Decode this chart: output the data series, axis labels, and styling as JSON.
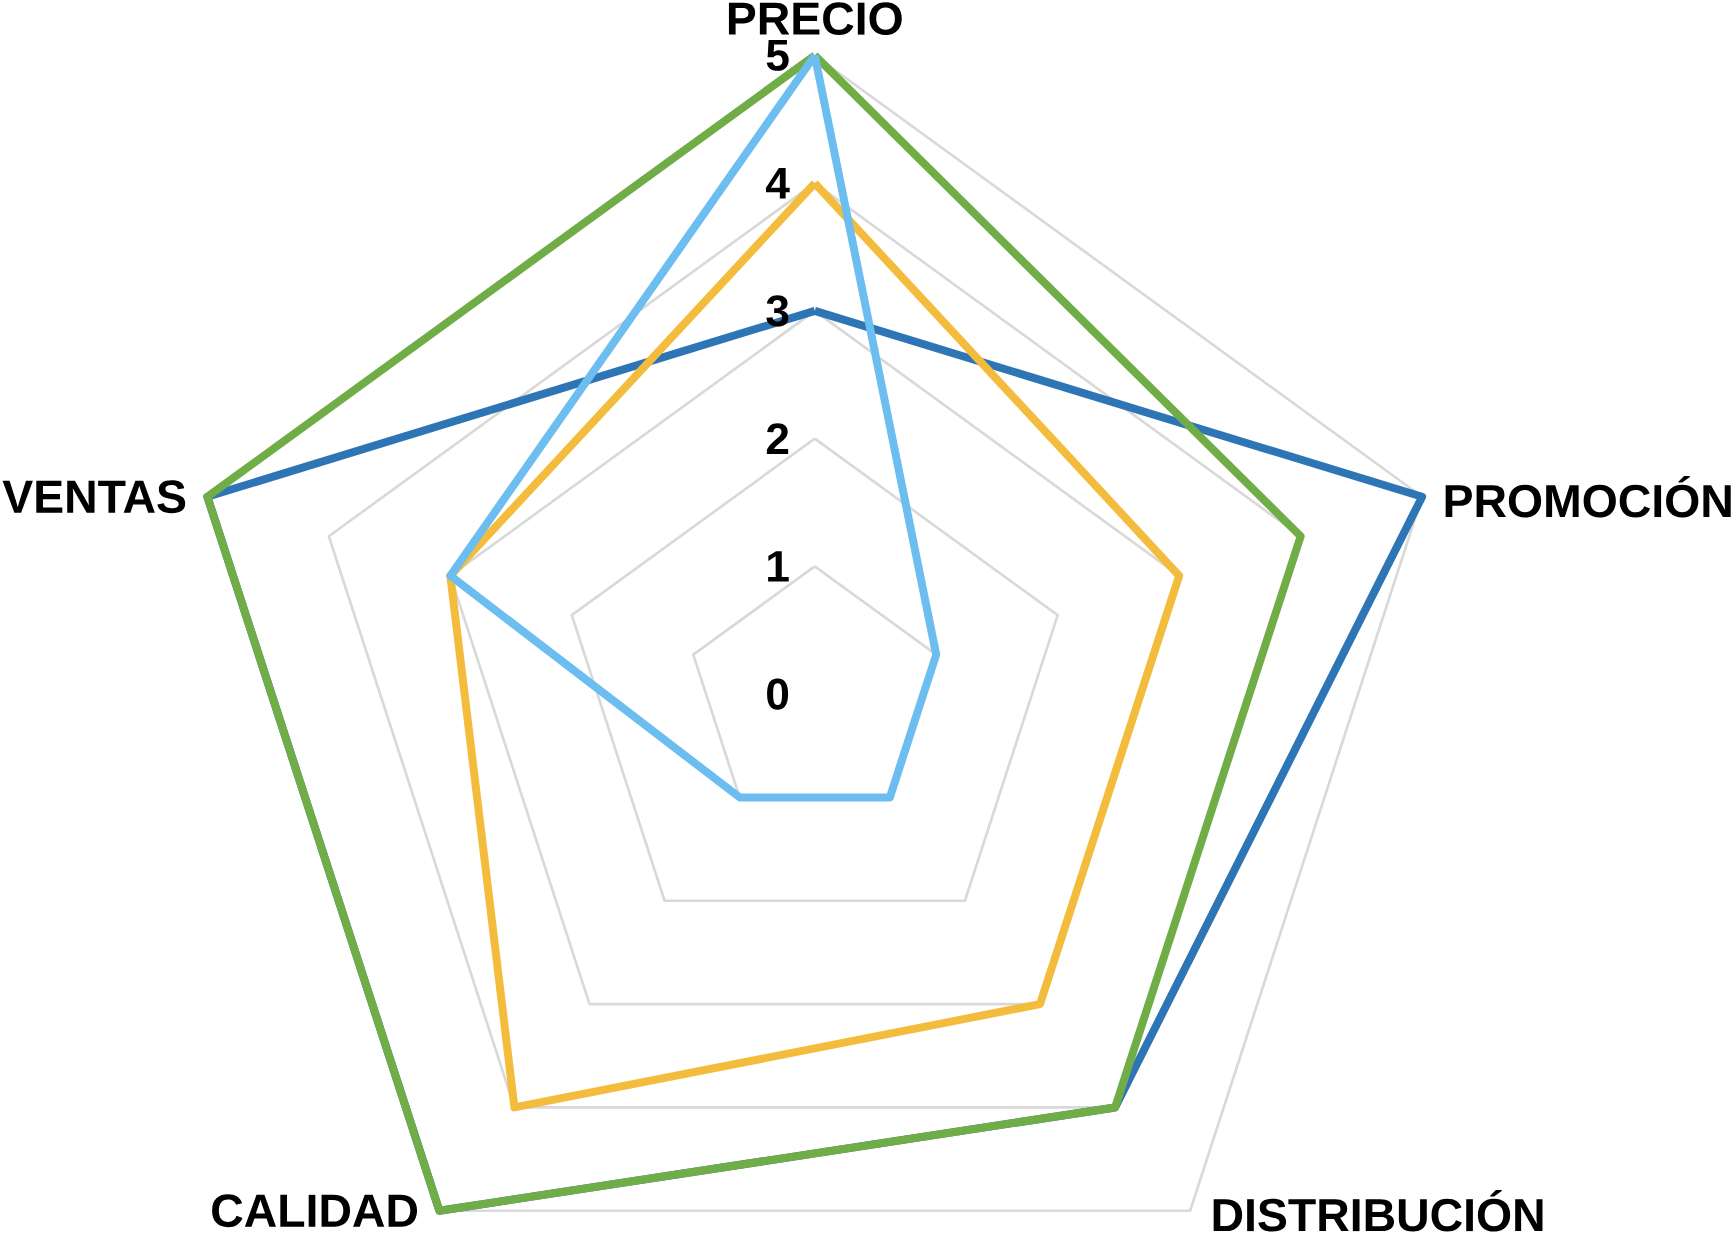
{
  "chart_data": {
    "type": "radar",
    "categories": [
      "PRECIO",
      "PROMOCIÓN",
      "DISTRIBUCIÓN",
      "CALIDAD",
      "VENTAS"
    ],
    "series": [
      {
        "color": "#2e75b6",
        "values": [
          3,
          5,
          4,
          5,
          5
        ]
      },
      {
        "color": "#f4bc3c",
        "values": [
          4,
          3,
          3,
          4,
          3
        ]
      },
      {
        "color": "#70ad47",
        "values": [
          5,
          4,
          4,
          5,
          5
        ]
      },
      {
        "color": "#6cbdf0",
        "values": [
          5,
          1,
          1,
          1,
          3
        ]
      }
    ],
    "ylim": [
      0,
      5
    ],
    "yticks": [
      0,
      1,
      2,
      3,
      4,
      5
    ],
    "grid": true
  }
}
